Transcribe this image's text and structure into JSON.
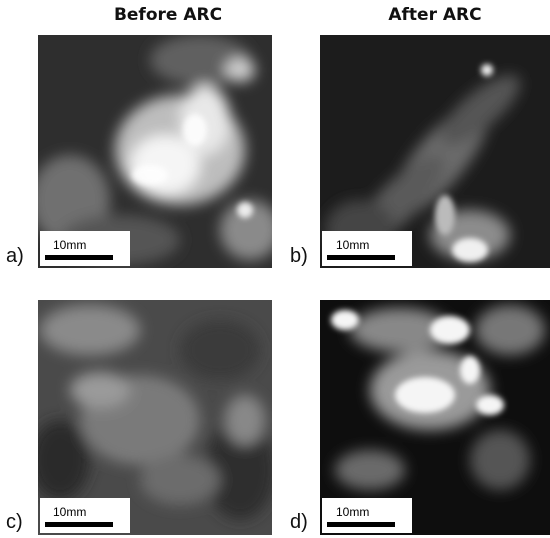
{
  "columns": [
    "Before ARC",
    "After ARC"
  ],
  "panels": [
    {
      "label": "a)",
      "scale": "10mm"
    },
    {
      "label": "b)",
      "scale": "10mm"
    },
    {
      "label": "c)",
      "scale": "10mm"
    },
    {
      "label": "d)",
      "scale": "10mm"
    }
  ]
}
